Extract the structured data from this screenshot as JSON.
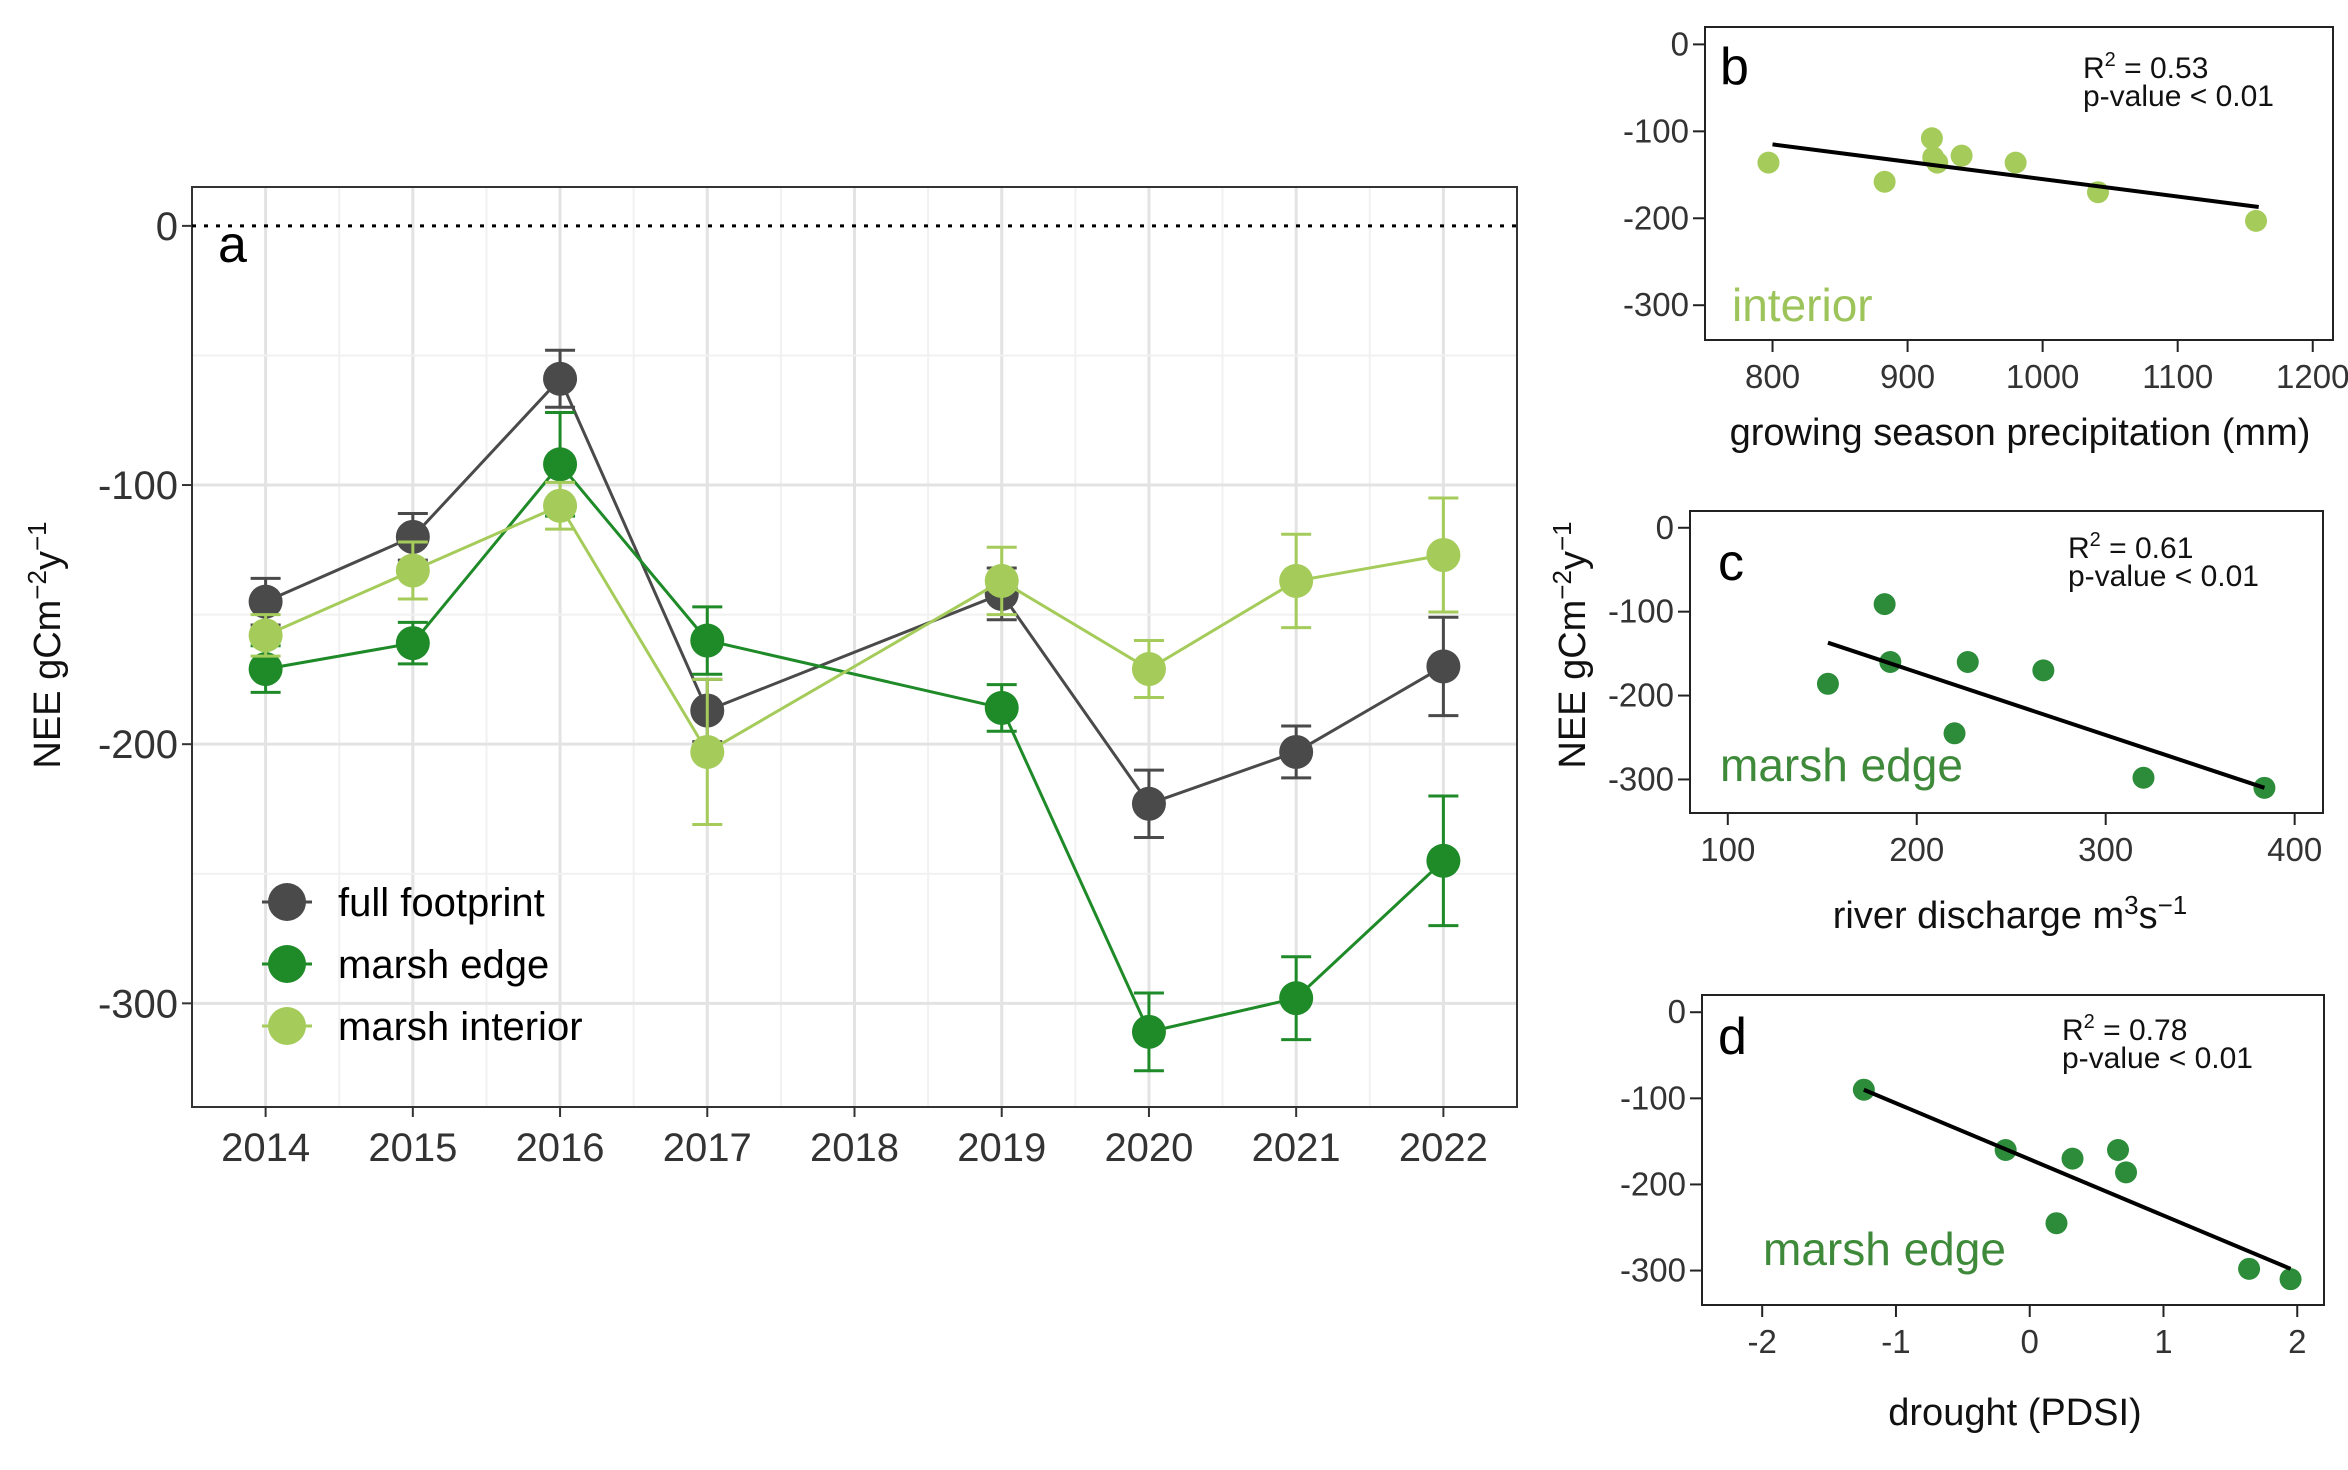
{
  "colors": {
    "full_footprint": "#4a4a4a",
    "marsh_edge": "#1f8a28",
    "marsh_interior": "#a5cc5b",
    "edge_points_inset": "#2c8c3a",
    "interior_label": "#9cc45a",
    "edge_label": "#3e8a3a",
    "grid": "#e3e3e3",
    "frame": "#333333"
  },
  "ylabel_main": {
    "base": "NEE gCm",
    "sup1": "−2",
    "mid": "y",
    "sup2": "−1"
  },
  "ylabel_side": {
    "base": "NEE gCm",
    "sup1": "−2",
    "mid": "y",
    "sup2": "−1"
  },
  "chart_data": [
    {
      "id": "a",
      "type": "line",
      "panel_letter": "a",
      "x_ticks": [
        "2014",
        "2015",
        "2016",
        "2017",
        "2018",
        "2019",
        "2020",
        "2021",
        "2022"
      ],
      "y_ticks": [
        "0",
        "-100",
        "-200",
        "-300"
      ],
      "y_tick_values": [
        0,
        -100,
        -200,
        -300
      ],
      "xlim": [
        2013.5,
        2022.5
      ],
      "ylim": [
        -340,
        15
      ],
      "reference_line": 0,
      "series": [
        {
          "key": "full_footprint",
          "name": "full footprint",
          "x": [
            2014,
            2015,
            2016,
            2017,
            2019,
            2020,
            2021,
            2022
          ],
          "y": [
            -145,
            -120,
            -59,
            -187,
            -142,
            -223,
            -203,
            -170
          ],
          "err": [
            9,
            9,
            11,
            12,
            10,
            13,
            10,
            19
          ]
        },
        {
          "key": "marsh_edge",
          "name": "marsh edge",
          "x": [
            2014,
            2015,
            2016,
            2017,
            2019,
            2020,
            2021,
            2022
          ],
          "y": [
            -171,
            -161,
            -92,
            -160,
            -186,
            -311,
            -298,
            -245
          ],
          "err": [
            9,
            8,
            20,
            13,
            9,
            15,
            16,
            25
          ]
        },
        {
          "key": "marsh_interior",
          "name": "marsh interior",
          "x": [
            2014,
            2015,
            2016,
            2017,
            2019,
            2020,
            2021,
            2022
          ],
          "y": [
            -158,
            -133,
            -108,
            -203,
            -137,
            -171,
            -137,
            -127
          ],
          "err": [
            8,
            11,
            9,
            28,
            13,
            11,
            18,
            22
          ]
        }
      ],
      "legend": [
        "full footprint",
        "marsh edge",
        "marsh interior"
      ]
    },
    {
      "id": "b",
      "type": "scatter",
      "panel_letter": "b",
      "xlabel": "growing season precipitation (mm)",
      "x_ticks": [
        "800",
        "900",
        "1000",
        "1100",
        "1200"
      ],
      "x_tick_values": [
        800,
        900,
        1000,
        1100,
        1200
      ],
      "y_ticks": [
        "0",
        "-100",
        "-200",
        "-300"
      ],
      "y_tick_values": [
        0,
        -100,
        -200,
        -300
      ],
      "xlim": [
        750,
        1215
      ],
      "ylim": [
        -340,
        20
      ],
      "points": {
        "x": [
          797,
          883,
          918,
          919,
          922,
          940,
          980,
          1041,
          1158
        ],
        "y": [
          -136,
          -158,
          -108,
          -130,
          -136,
          -128,
          -136,
          -170,
          -203
        ]
      },
      "fit": {
        "x": [
          800,
          1160
        ],
        "y": [
          -115,
          -187
        ]
      },
      "r2_label": "R",
      "r2_sup": "2",
      "r2_value": " = 0.53",
      "p_text": "p-value < 0.01",
      "group_label": "interior"
    },
    {
      "id": "c",
      "type": "scatter",
      "panel_letter": "c",
      "xlabel_base": "river discharge m",
      "xlabel_sup1": "3",
      "xlabel_mid": "s",
      "xlabel_sup2": "−1",
      "x_ticks": [
        "100",
        "200",
        "300",
        "400"
      ],
      "x_tick_values": [
        100,
        200,
        300,
        400
      ],
      "y_ticks": [
        "0",
        "-100",
        "-200",
        "-300"
      ],
      "y_tick_values": [
        0,
        -100,
        -200,
        -300
      ],
      "xlim": [
        80,
        415
      ],
      "ylim": [
        -340,
        20
      ],
      "points": {
        "x": [
          153,
          183,
          186,
          220,
          227,
          267,
          320,
          384
        ],
        "y": [
          -186,
          -91,
          -160,
          -245,
          -160,
          -170,
          -298,
          -310
        ]
      },
      "fit": {
        "x": [
          153,
          384
        ],
        "y": [
          -137,
          -310
        ]
      },
      "r2_label": "R",
      "r2_sup": "2",
      "r2_value": " = 0.61",
      "p_text": "p-value < 0.01",
      "group_label": "marsh edge"
    },
    {
      "id": "d",
      "type": "scatter",
      "panel_letter": "d",
      "xlabel": "drought (PDSI)",
      "x_ticks": [
        "-2",
        "-1",
        "0",
        "1",
        "2"
      ],
      "x_tick_values": [
        -2,
        -1,
        0,
        1,
        2
      ],
      "y_ticks": [
        "0",
        "-100",
        "-200",
        "-300"
      ],
      "y_tick_values": [
        0,
        -100,
        -200,
        -300
      ],
      "xlim": [
        -2.45,
        2.2
      ],
      "ylim": [
        -340,
        20
      ],
      "points": {
        "x": [
          -1.24,
          -0.18,
          0.2,
          0.32,
          0.66,
          0.72,
          1.64,
          1.95
        ],
        "y": [
          -90,
          -160,
          -245,
          -170,
          -160,
          -186,
          -298,
          -310
        ]
      },
      "fit": {
        "x": [
          -1.24,
          1.95
        ],
        "y": [
          -90,
          -298
        ]
      },
      "r2_label": "R",
      "r2_sup": "2",
      "r2_value": " = 0.78",
      "p_text": "p-value < 0.01",
      "group_label": "marsh edge"
    }
  ]
}
